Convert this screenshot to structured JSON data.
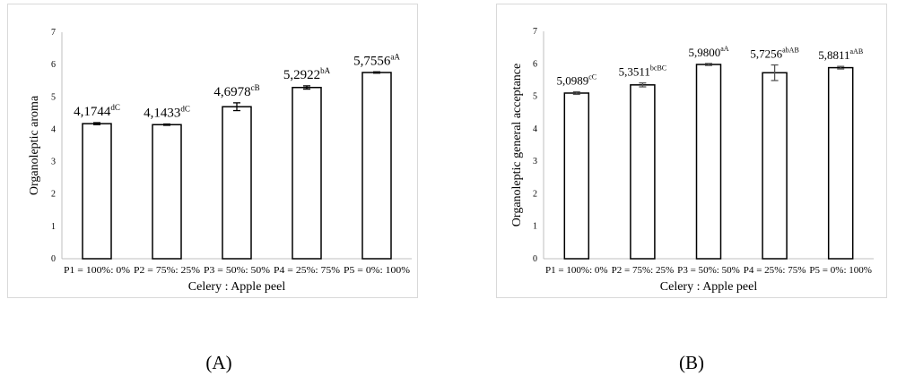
{
  "panels": [
    {
      "label": "(A)"
    },
    {
      "label": "(B)"
    }
  ],
  "chart_data": [
    {
      "type": "bar",
      "xlabel": "Celery : Apple peel",
      "ylabel": "Organoleptic aroma",
      "ylim": [
        0,
        7
      ],
      "yticks": [
        "0",
        "1",
        "2",
        "3",
        "4",
        "5",
        "6",
        "7"
      ],
      "grid": false,
      "legend": "none",
      "categories": [
        "P1 = 100%: 0%",
        "P2 = 75%: 25%",
        "P3 = 50%: 50%",
        "P4 = 25%: 75%",
        "P5 = 0%: 100%"
      ],
      "values": [
        4.1744,
        4.1433,
        4.6978,
        5.2922,
        5.7556
      ],
      "errors": [
        0.03,
        0.02,
        0.12,
        0.05,
        0.02
      ],
      "value_labels": [
        "4,1744",
        "4,1433",
        "4,6978",
        "5,2922",
        "5,7556"
      ],
      "value_superscripts": [
        "dC",
        "dC",
        "cB",
        "bA",
        "aA"
      ]
    },
    {
      "type": "bar",
      "xlabel": "Celery : Apple peel",
      "ylabel": "Organoleptic general acceptance",
      "ylim": [
        0,
        7
      ],
      "yticks": [
        "0",
        "1",
        "2",
        "3",
        "4",
        "5",
        "6",
        "7"
      ],
      "grid": false,
      "legend": "none",
      "categories": [
        "P1 = 100%: 0%",
        "P2 = 75%: 25%",
        "P3 = 50%: 50%",
        "P4 = 25%: 75%",
        "P5 = 0%: 100%"
      ],
      "values": [
        5.0989,
        5.3511,
        5.98,
        5.7256,
        5.8811
      ],
      "errors": [
        0.04,
        0.06,
        0.03,
        0.24,
        0.04
      ],
      "value_labels": [
        "5,0989",
        "5,3511",
        "5,9800",
        "5,7256",
        "5,8811"
      ],
      "value_superscripts": [
        "cC",
        "bcBC",
        "aA",
        "abAB",
        "aAB"
      ]
    }
  ]
}
